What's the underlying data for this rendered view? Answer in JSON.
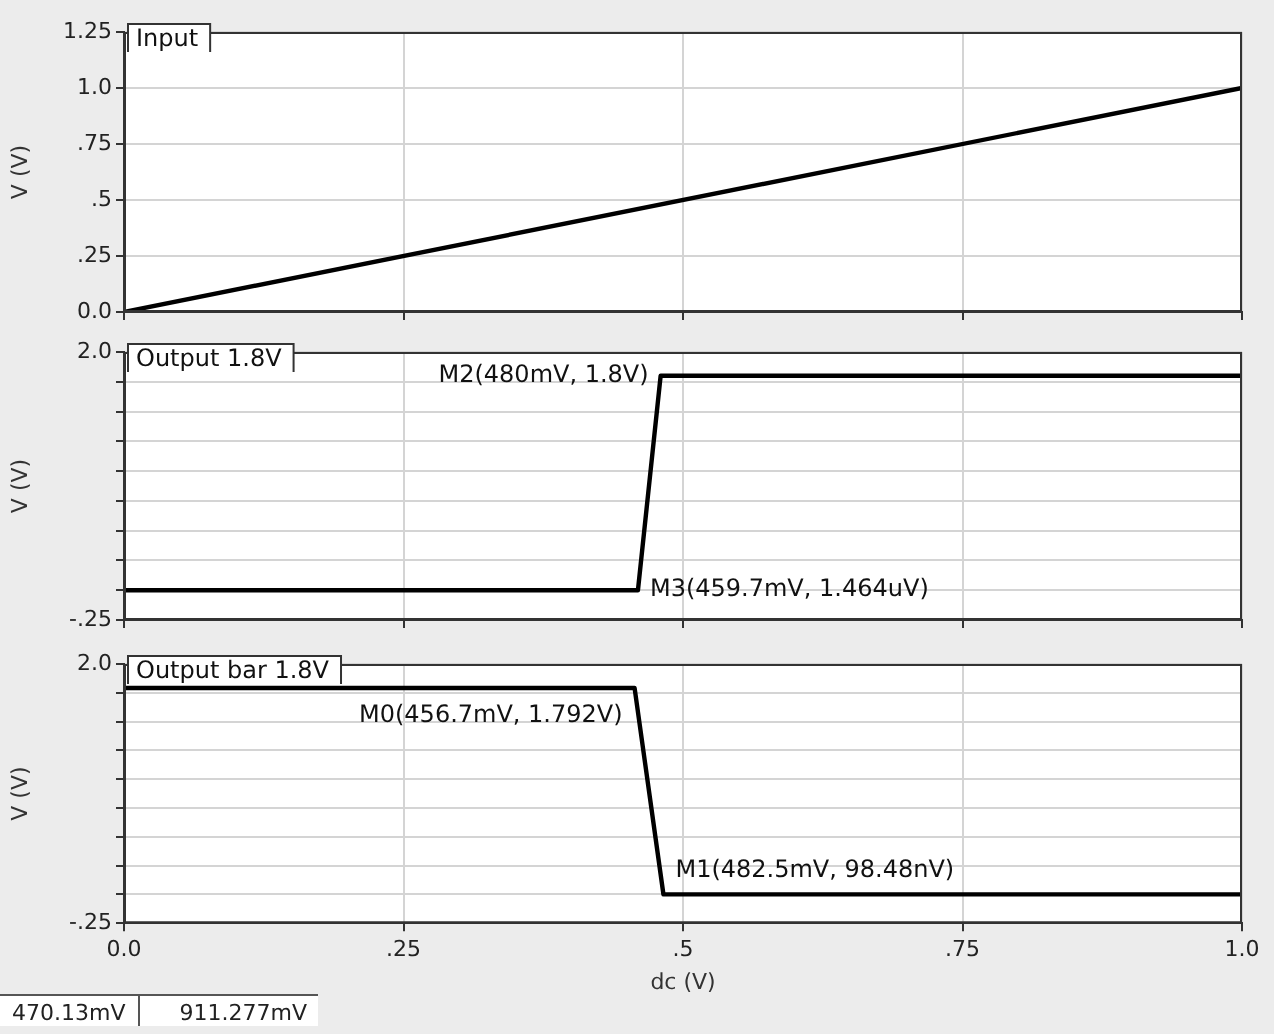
{
  "chart_data": [
    {
      "type": "line",
      "title": "Input",
      "ylabel": "V (V)",
      "xlim": [
        0,
        1
      ],
      "xticks": [
        {
          "value": 0,
          "label": null
        },
        {
          "value": 0.25,
          "label": null
        },
        {
          "value": 0.5,
          "label": null
        },
        {
          "value": 0.75,
          "label": null
        },
        {
          "value": 1,
          "label": null
        }
      ],
      "ylim": [
        0,
        1.25
      ],
      "yticks": [
        {
          "value": 0,
          "label": "0.0"
        },
        {
          "value": 0.25,
          "label": ".25"
        },
        {
          "value": 0.5,
          "label": ".5"
        },
        {
          "value": 0.75,
          "label": ".75"
        },
        {
          "value": 1,
          "label": "1.0"
        },
        {
          "value": 1.25,
          "label": "1.25"
        }
      ],
      "grid": true,
      "tick_labels": "y",
      "series": [
        {
          "color": "#000000",
          "x": [
            0,
            1
          ],
          "values": [
            0,
            1
          ]
        }
      ]
    },
    {
      "type": "line",
      "title": "Output 1.8V",
      "ylabel": "V (V)",
      "xlim": [
        0,
        1
      ],
      "xticks": [
        {
          "value": 0,
          "label": null
        },
        {
          "value": 0.25,
          "label": null
        },
        {
          "value": 0.5,
          "label": null
        },
        {
          "value": 0.75,
          "label": null
        },
        {
          "value": 1,
          "label": null
        }
      ],
      "ylim": [
        -0.25,
        2
      ],
      "yticks": [
        {
          "value": -0.25,
          "label": "-.25"
        },
        {
          "value": 0,
          "label": null
        },
        {
          "value": 0.25,
          "label": null
        },
        {
          "value": 0.5,
          "label": null
        },
        {
          "value": 0.75,
          "label": null
        },
        {
          "value": 1,
          "label": null
        },
        {
          "value": 1.25,
          "label": null
        },
        {
          "value": 1.5,
          "label": null
        },
        {
          "value": 1.75,
          "label": null
        },
        {
          "value": 2,
          "label": "2.0"
        }
      ],
      "grid": true,
      "tick_labels": "y",
      "series": [
        {
          "color": "#000000",
          "x": [
            0,
            0.4597,
            0.48,
            1
          ],
          "values": [
            0,
            0,
            1.8,
            1.8
          ]
        }
      ],
      "annotations": [
        {
          "text": "M2(480mV, 1.8V)",
          "x": 0.48,
          "y": 1.8
        },
        {
          "text": "M3(459.7mV, 1.464uV)",
          "x": 0.4597,
          "y": 0
        }
      ]
    },
    {
      "type": "line",
      "title": "Output bar 1.8V",
      "xlabel": "dc (V)",
      "ylabel": "V (V)",
      "xlim": [
        0,
        1
      ],
      "xticks": [
        {
          "value": 0,
          "label": "0.0"
        },
        {
          "value": 0.25,
          "label": ".25"
        },
        {
          "value": 0.5,
          "label": ".5"
        },
        {
          "value": 0.75,
          "label": ".75"
        },
        {
          "value": 1,
          "label": "1.0"
        }
      ],
      "ylim": [
        -0.25,
        2
      ],
      "yticks": [
        {
          "value": -0.25,
          "label": "-.25"
        },
        {
          "value": 0,
          "label": null
        },
        {
          "value": 0.25,
          "label": null
        },
        {
          "value": 0.5,
          "label": null
        },
        {
          "value": 0.75,
          "label": null
        },
        {
          "value": 1,
          "label": null
        },
        {
          "value": 1.25,
          "label": null
        },
        {
          "value": 1.5,
          "label": null
        },
        {
          "value": 1.75,
          "label": null
        },
        {
          "value": 2,
          "label": "2.0"
        }
      ],
      "grid": true,
      "series": [
        {
          "color": "#000000",
          "x": [
            0,
            0.4567,
            0.4825,
            1
          ],
          "values": [
            1.792,
            1.792,
            0,
            0
          ]
        }
      ],
      "annotations": [
        {
          "text": "M0(456.7mV, 1.792V)",
          "x": 0.4567,
          "y": 1.792
        },
        {
          "text": "M1(482.5mV, 98.48nV)",
          "x": 0.4825,
          "y": 0
        },
        "470.13mV",
        "911.277mV"
      ]
    }
  ]
}
